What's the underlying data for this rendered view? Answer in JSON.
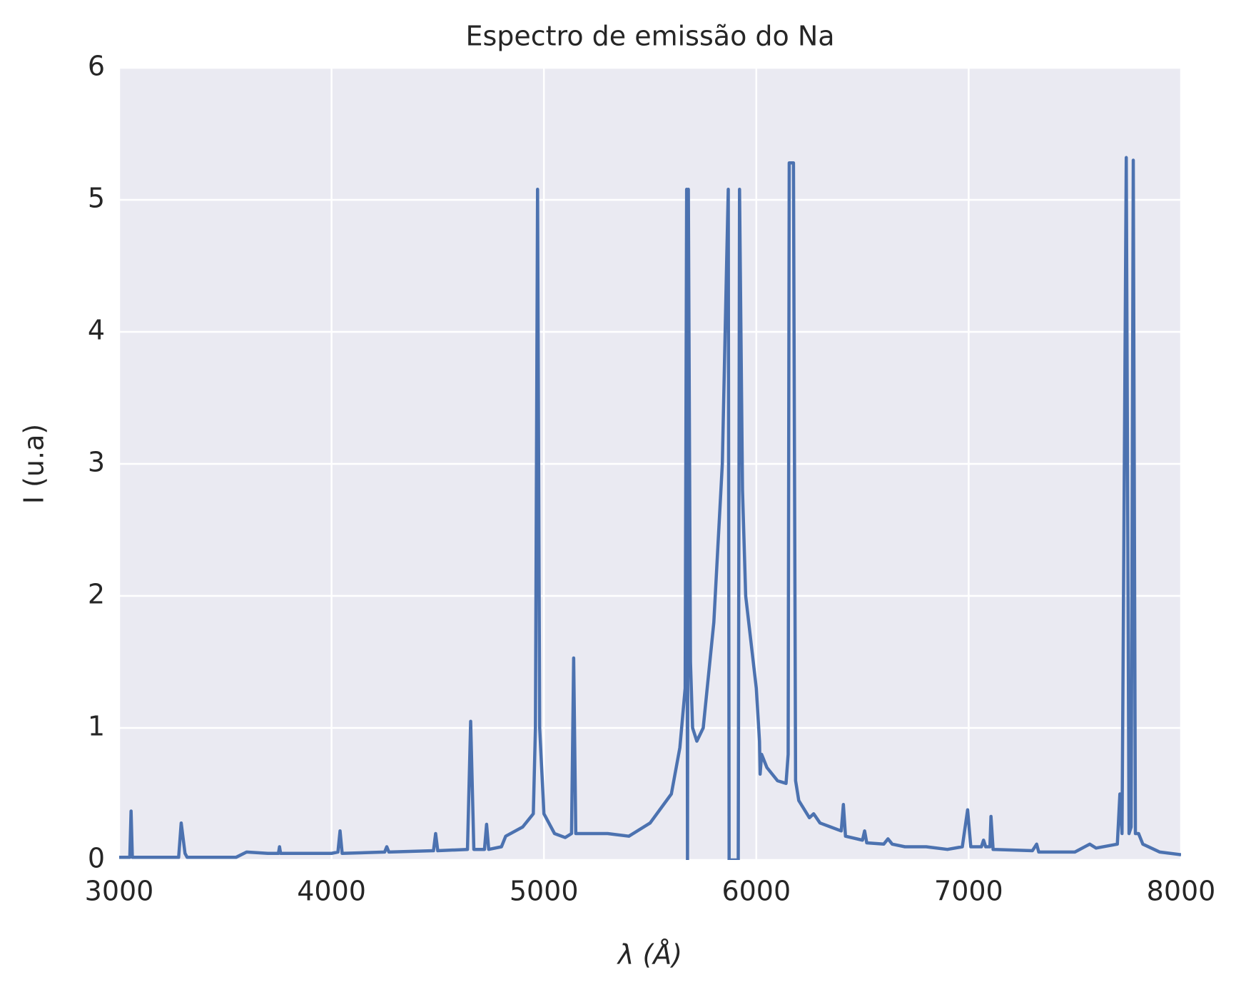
{
  "chart_data": {
    "type": "line",
    "title": "Espectro de emissão do Na",
    "xlabel": "λ (Å)",
    "ylabel": "I (u.a)",
    "x": [
      3000,
      3050,
      3056,
      3062,
      3280,
      3292,
      3310,
      3320,
      3550,
      3600,
      3700,
      3750,
      3755,
      3760,
      4000,
      4030,
      4040,
      4050,
      4250,
      4260,
      4270,
      4480,
      4490,
      4500,
      4640,
      4655,
      4670,
      4720,
      4730,
      4740,
      4800,
      4820,
      4900,
      4950,
      4960,
      4970,
      4980,
      5000,
      5050,
      5100,
      5130,
      5140,
      5150,
      5200,
      5300,
      5400,
      5500,
      5600,
      5640,
      5665,
      5672,
      5676,
      5680,
      5690,
      5700,
      5720,
      5750,
      5800,
      5840,
      5860,
      5868,
      5872,
      5915,
      5921,
      5935,
      5950,
      6000,
      6015,
      6018,
      6025,
      6050,
      6100,
      6140,
      6150,
      6155,
      6175,
      6185,
      6200,
      6250,
      6270,
      6300,
      6350,
      6400,
      6410,
      6420,
      6500,
      6510,
      6520,
      6600,
      6620,
      6640,
      6700,
      6800,
      6900,
      6970,
      6995,
      7010,
      7060,
      7070,
      7080,
      7100,
      7105,
      7115,
      7300,
      7320,
      7330,
      7500,
      7570,
      7600,
      7700,
      7712,
      7722,
      7742,
      7755,
      7765,
      7775,
      7785,
      7800,
      7820,
      7900,
      8000
    ],
    "series": [
      {
        "name": "Na",
        "color": "#4c72b0",
        "values": [
          0.02,
          0.02,
          0.37,
          0.02,
          0.02,
          0.28,
          0.05,
          0.02,
          0.02,
          0.06,
          0.05,
          0.05,
          0.1,
          0.05,
          0.05,
          0.06,
          0.22,
          0.05,
          0.06,
          0.1,
          0.06,
          0.07,
          0.2,
          0.07,
          0.08,
          1.05,
          0.08,
          0.08,
          0.27,
          0.08,
          0.1,
          0.18,
          0.25,
          0.35,
          1.0,
          5.08,
          1.0,
          0.35,
          0.2,
          0.17,
          0.2,
          1.53,
          0.2,
          0.2,
          0.2,
          0.18,
          0.28,
          0.5,
          0.85,
          1.3,
          5.08,
          0,
          5.08,
          1.5,
          1.0,
          0.9,
          1.0,
          1.8,
          3.0,
          4.5,
          5.08,
          0,
          0,
          5.08,
          2.8,
          2.0,
          1.3,
          0.9,
          0.65,
          0.8,
          0.7,
          0.6,
          0.58,
          0.8,
          5.28,
          5.28,
          0.6,
          0.45,
          0.32,
          0.35,
          0.28,
          0.25,
          0.22,
          0.42,
          0.18,
          0.15,
          0.22,
          0.13,
          0.12,
          0.16,
          0.12,
          0.1,
          0.1,
          0.08,
          0.1,
          0.38,
          0.1,
          0.1,
          0.15,
          0.1,
          0.1,
          0.33,
          0.08,
          0.07,
          0.12,
          0.06,
          0.06,
          0.12,
          0.09,
          0.12,
          0.5,
          0.2,
          5.32,
          0.2,
          0.25,
          5.3,
          0.2,
          0.2,
          0.12,
          0.06,
          0.04
        ]
      }
    ],
    "xlim": [
      3000,
      8000
    ],
    "xticks": [
      3000,
      4000,
      5000,
      6000,
      7000,
      8000
    ],
    "ylim": [
      0,
      6
    ],
    "yticks": [
      0,
      1,
      2,
      3,
      4,
      5,
      6
    ],
    "grid": true
  }
}
